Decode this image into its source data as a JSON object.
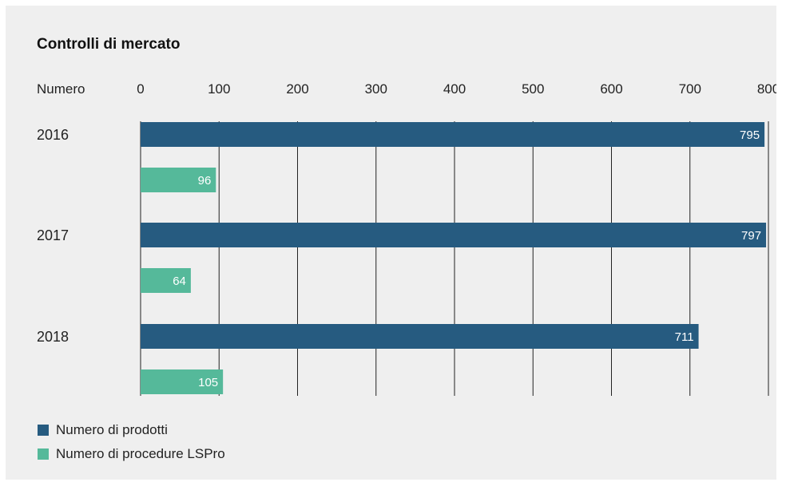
{
  "chart_data": {
    "type": "bar",
    "orientation": "horizontal",
    "title": "Controlli di mercato",
    "xlabel": "Numero",
    "ylabel": "",
    "xlim": [
      0,
      800
    ],
    "x_ticks": [
      0,
      100,
      200,
      300,
      400,
      500,
      600,
      700,
      800
    ],
    "categories": [
      "2016",
      "2017",
      "2018"
    ],
    "series": [
      {
        "name": "Numero di prodotti",
        "color": "#265b80",
        "values": [
          795,
          797,
          711
        ]
      },
      {
        "name": "Numero di procedure LSPro",
        "color": "#55b99a",
        "values": [
          96,
          64,
          105
        ]
      }
    ],
    "grid": "vertical",
    "legend_position": "bottom-left"
  }
}
